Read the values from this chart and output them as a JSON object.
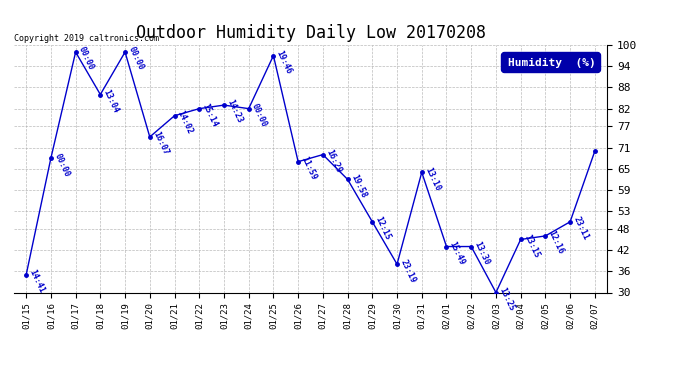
{
  "title": "Outdoor Humidity Daily Low 20170208",
  "copyright": "Copyright 2019 caltronics.com",
  "legend_label": "Humidity  (%)",
  "x_labels": [
    "01/15",
    "01/16",
    "01/17",
    "01/18",
    "01/19",
    "01/20",
    "01/21",
    "01/22",
    "01/23",
    "01/24",
    "01/25",
    "01/26",
    "01/27",
    "01/28",
    "01/29",
    "01/30",
    "01/31",
    "02/01",
    "02/02",
    "02/03",
    "02/04",
    "02/05",
    "02/06",
    "02/07"
  ],
  "x_values": [
    0,
    1,
    2,
    3,
    4,
    5,
    6,
    7,
    8,
    9,
    10,
    11,
    12,
    13,
    14,
    15,
    16,
    17,
    18,
    19,
    20,
    21,
    22,
    23
  ],
  "y_values": [
    35,
    68,
    98,
    86,
    98,
    74,
    80,
    82,
    83,
    82,
    97,
    67,
    69,
    62,
    50,
    38,
    64,
    43,
    43,
    30,
    45,
    46,
    50,
    70
  ],
  "point_label_map": {
    "0": "14:41",
    "1": "00:00",
    "2": "00:00",
    "3": "13:04",
    "4": "00:00",
    "5": "16:07",
    "6": "14:02",
    "7": "15:14",
    "8": "14:23",
    "9": "00:00",
    "10": "19:46",
    "11": "11:59",
    "12": "16:29",
    "13": "19:58",
    "14": "12:15",
    "15": "23:19",
    "16": "13:10",
    "17": "15:49",
    "18": "13:30",
    "19": "13:25",
    "20": "13:15",
    "21": "12:16",
    "22": "23:11",
    "23": null
  },
  "ylim": [
    30,
    100
  ],
  "yticks": [
    30,
    36,
    42,
    48,
    53,
    59,
    65,
    71,
    77,
    82,
    88,
    94,
    100
  ],
  "line_color": "#0000cc",
  "marker_color": "#0000cc",
  "label_color": "#0000cc",
  "bg_color": "#ffffff",
  "grid_color": "#aaaaaa",
  "title_fontsize": 12,
  "tick_fontsize": 8,
  "legend_bg": "#0000aa",
  "legend_text_color": "#ffffff"
}
